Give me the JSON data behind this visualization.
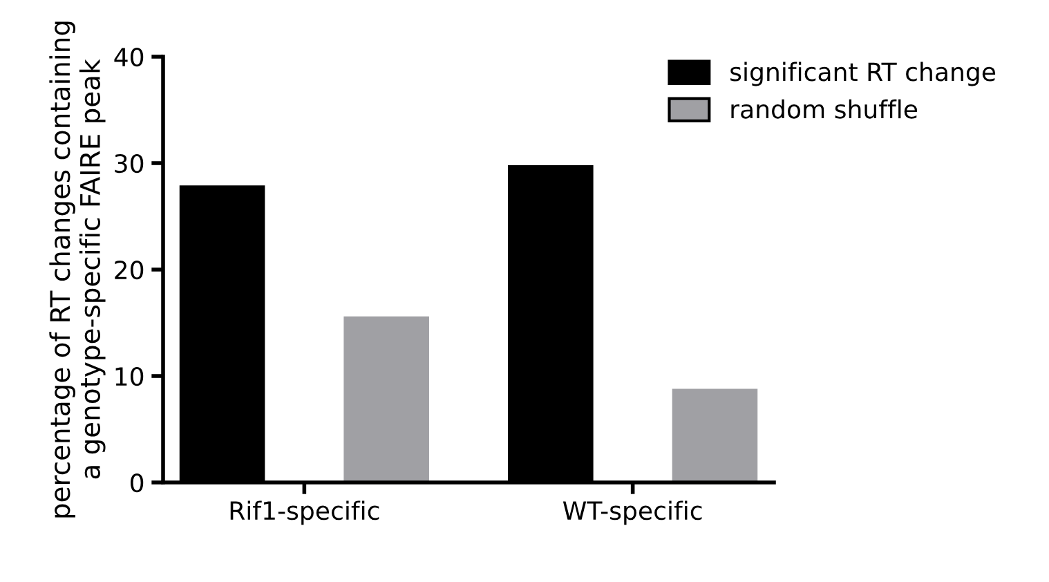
{
  "chart_data": {
    "type": "bar",
    "ylabel": "percentage of RT changes containing\na genotype-specific FAIRE peak",
    "categories": [
      "Rif1-specific",
      "WT-specific"
    ],
    "series": [
      {
        "name": "significant RT change",
        "color": "#000000",
        "values": [
          27.9,
          29.8
        ]
      },
      {
        "name": "random shuffle",
        "color": "#a0a0a4",
        "values": [
          15.6,
          8.8
        ]
      }
    ],
    "ylim": [
      0,
      40
    ],
    "yticks": [
      0,
      10,
      20,
      30,
      40
    ],
    "grid": false,
    "legend": "top right"
  }
}
